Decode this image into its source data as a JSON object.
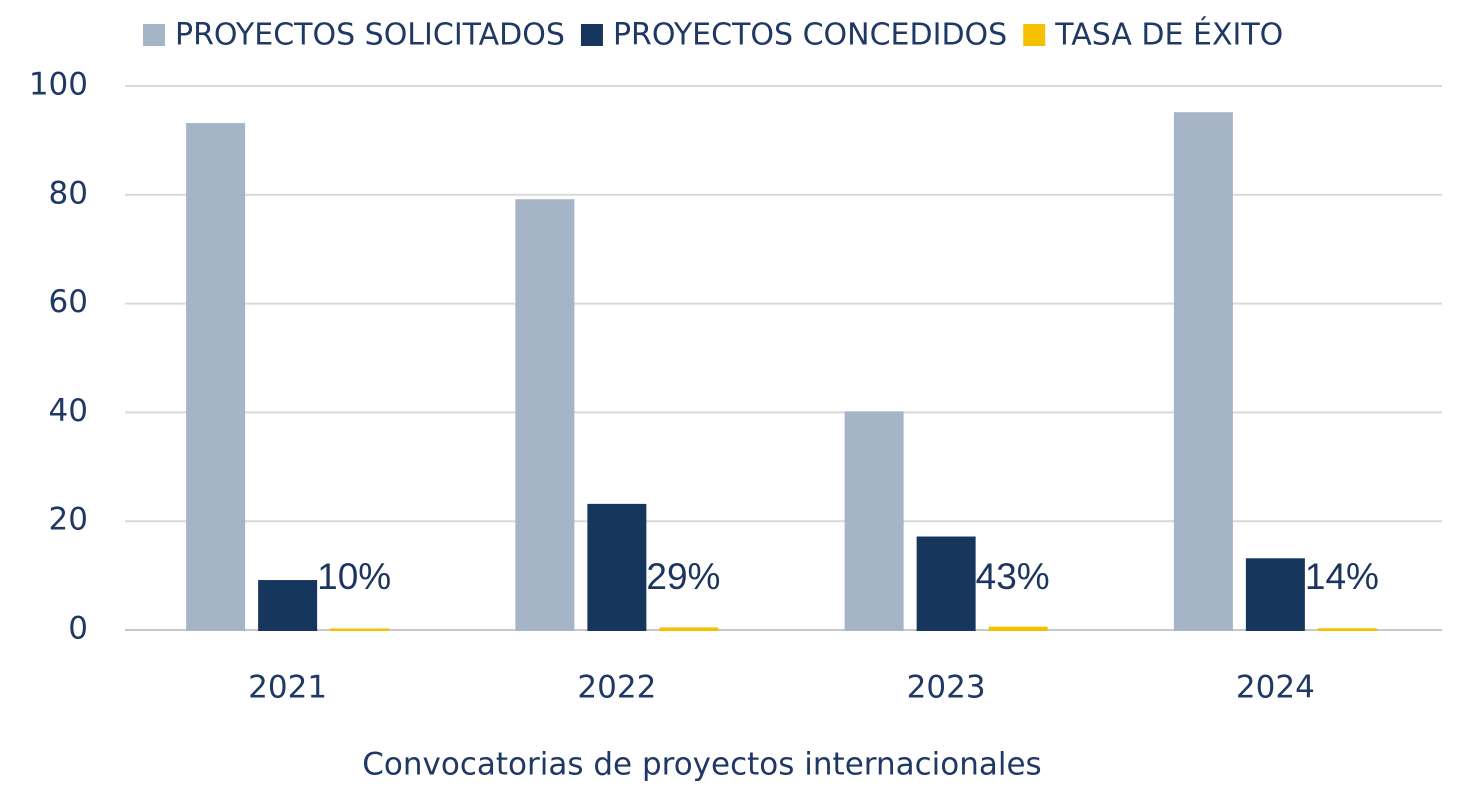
{
  "chart_data": {
    "type": "bar",
    "x_label": "Convocatorias de proyectos internacionales",
    "categories": [
      "2021",
      "2022",
      "2023",
      "2024"
    ],
    "series": [
      {
        "name": "PROYECTOS SOLICITADOS",
        "color": "#a6b4c8",
        "values": [
          93,
          79,
          40,
          95
        ]
      },
      {
        "name": "PROYECTOS CONCEDIDOS",
        "color": "#17365d",
        "values": [
          9,
          23,
          17,
          13
        ]
      },
      {
        "name": "TASA DE ÉXITO",
        "color": "#f5c000",
        "values": [
          0.1,
          0.29,
          0.43,
          0.14
        ],
        "value_labels": [
          "10%",
          "29%",
          "43%",
          "14%"
        ]
      }
    ],
    "ylim": [
      0,
      100
    ],
    "yticks": [
      0,
      20,
      40,
      60,
      80,
      100
    ],
    "grid": true,
    "legend": "top"
  }
}
